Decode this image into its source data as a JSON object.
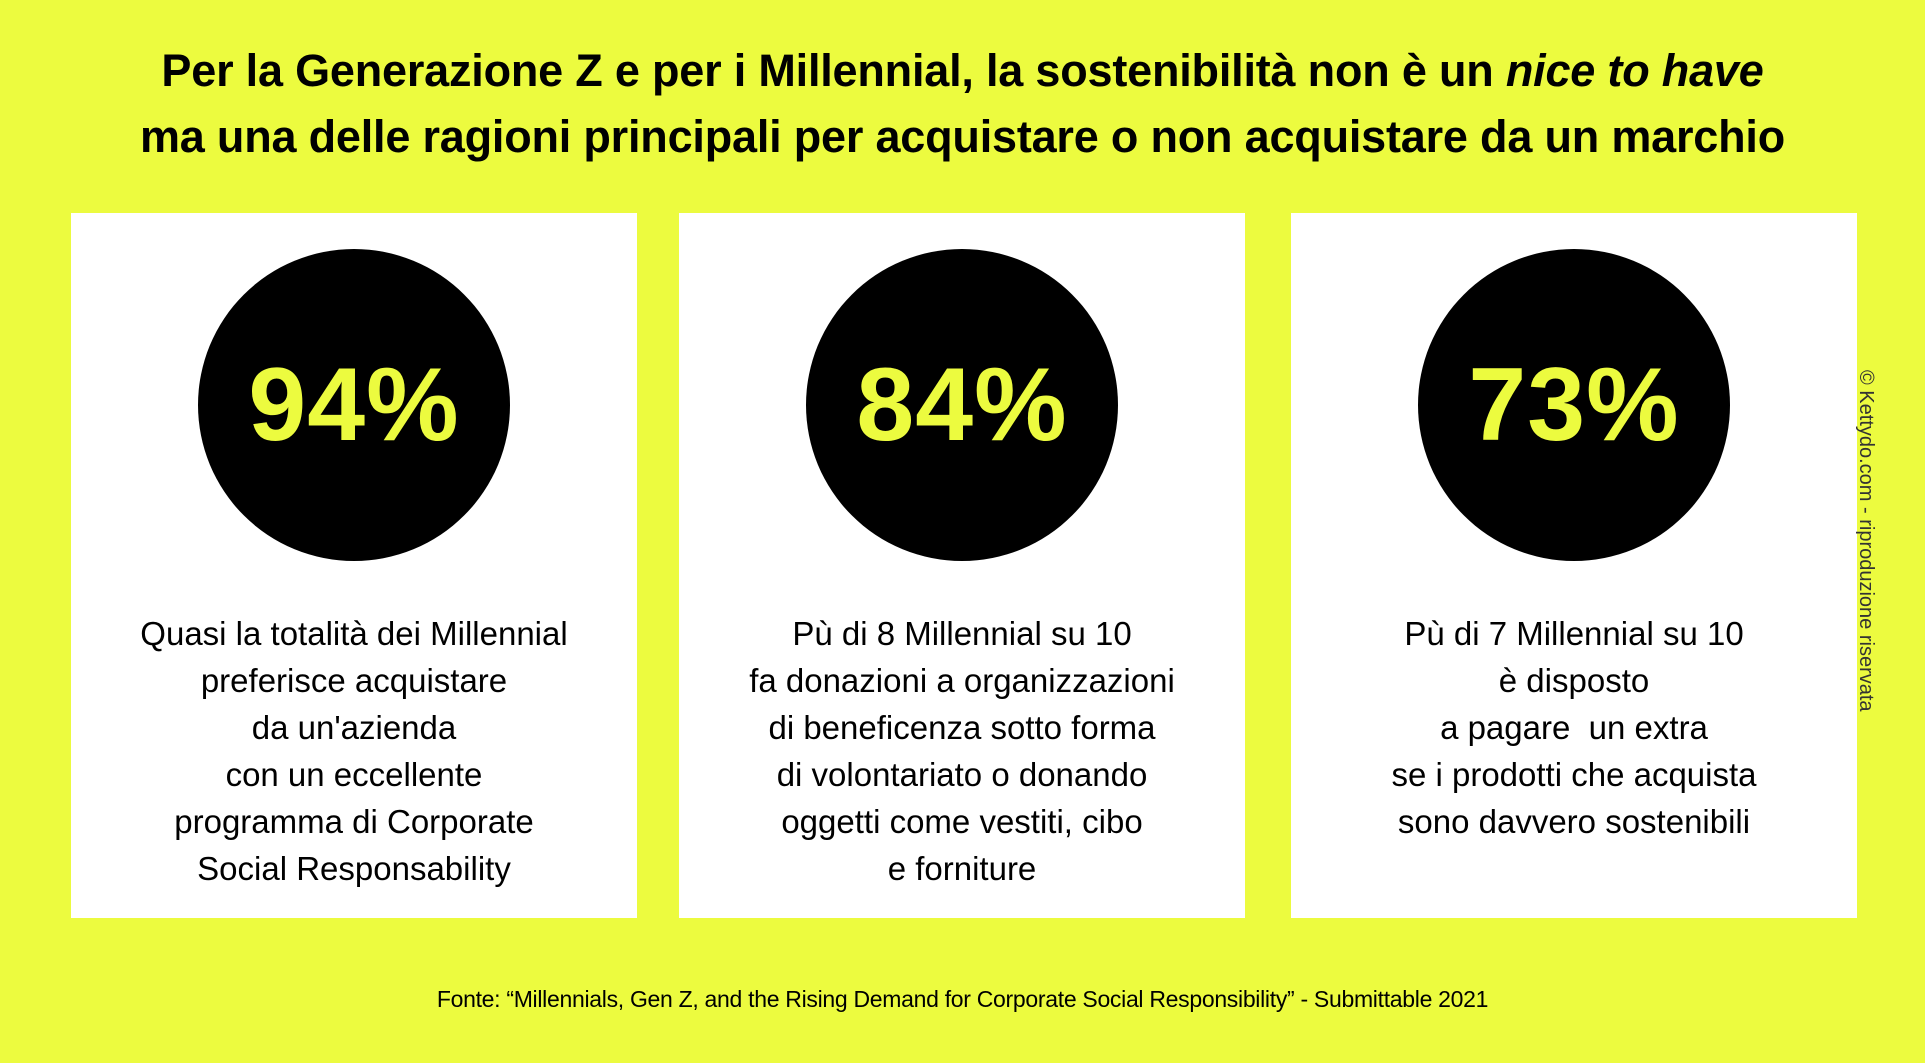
{
  "header": {
    "title_line1_prefix": "Per la Generazione Z e per i Millennial, la sostenibilità non è un ",
    "title_line1_emphasis": "nice to have",
    "title_line2": "ma una delle ragioni principali per acquistare o non acquistare da un marchio"
  },
  "cards": [
    {
      "stat": "94%",
      "lines": [
        "Quasi la totalità dei Millennial",
        "preferisce acquistare",
        "da un'azienda",
        "con un eccellente",
        "programma di Corporate",
        "Social Responsability"
      ]
    },
    {
      "stat": "84%",
      "lines": [
        "Pù di 8 Millennial su 10",
        "fa donazioni a organizzazioni",
        "di beneficenza sotto forma",
        "di volontariato o donando",
        "oggetti come vestiti, cibo",
        "e forniture"
      ]
    },
    {
      "stat": "73%",
      "lines": [
        "Pù di 7 Millennial su 10",
        "è disposto",
        "a pagare  un extra",
        "se i prodotti che acquista",
        "sono davvero sostenibili"
      ]
    }
  ],
  "footer": {
    "source": "Fonte: “Millennials, Gen Z, and the Rising Demand for Corporate Social Responsibility”  - Submittable 2021"
  },
  "watermark": {
    "copyright": "© Kettydo.com - riproduzione riservata"
  },
  "colors": {
    "background": "#ecfb3f",
    "circle": "#000000",
    "card": "#ffffff"
  }
}
